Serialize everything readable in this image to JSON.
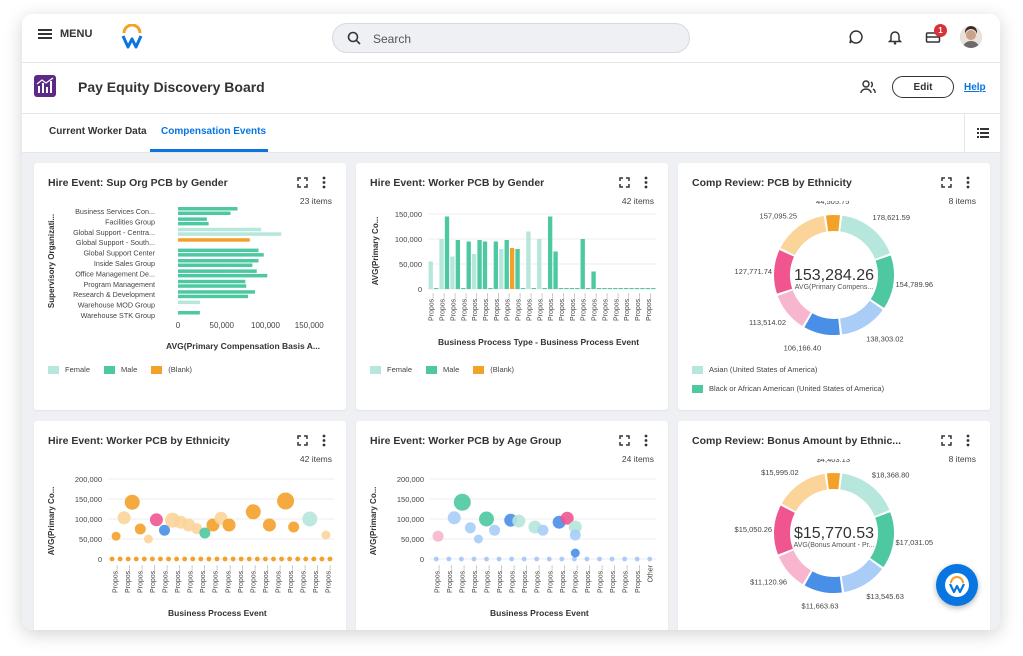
{
  "topbar": {
    "menu_label": "MENU",
    "search_placeholder": "Search",
    "notification_badge": "1"
  },
  "header": {
    "title": "Pay Equity Discovery Board",
    "edit_label": "Edit",
    "help_label": "Help"
  },
  "tabs": [
    {
      "label": "Current Worker Data",
      "active": false
    },
    {
      "label": "Compensation Events",
      "active": true
    }
  ],
  "colors": {
    "female": "#b6e6dc",
    "male": "#4dc8a1",
    "blank": "#f4a12a",
    "accent": "#0875e1"
  },
  "cards": [
    {
      "title": "Hire Event: Sup Org PCB by Gender",
      "count": "23 items",
      "legend": [
        "Female",
        "Male",
        "(Blank)"
      ]
    },
    {
      "title": "Hire Event: Worker PCB by Gender",
      "count": "42 items",
      "legend": [
        "Female",
        "Male",
        "(Blank)"
      ]
    },
    {
      "title": "Comp Review: PCB by Ethnicity",
      "count": "8 items",
      "center_value": "153,284.26",
      "center_label": "AVG(Primary Compens...",
      "legend": [
        "Asian (United States of America)",
        "Black or African American (United States of America)"
      ]
    },
    {
      "title": "Hire Event: Worker PCB by Ethnicity",
      "count": "42 items"
    },
    {
      "title": "Hire Event: Worker PCB by Age Group",
      "count": "24 items"
    },
    {
      "title": "Comp Review: Bonus Amount by Ethnic...",
      "count": "8 items",
      "center_value": "$15,770.53",
      "center_label": "AVG(Bonus Amount - Pr..."
    }
  ],
  "chart_data": [
    {
      "type": "bar",
      "orientation": "horizontal",
      "title": "Hire Event: Sup Org PCB by Gender",
      "xlabel": "AVG(Primary Compensation Basis A...",
      "ylabel": "Supervisory Organizati...",
      "categories": [
        "Business Services Con...",
        "Facilities Group",
        "Global Support - Centra...",
        "Global Support - South...",
        "Global Support Center",
        "Inside Sales Group",
        "Office Management De...",
        "Program Management",
        "Research & Development",
        "Warehouse MOD Group",
        "Warehouse STK Group"
      ],
      "xticks": [
        "0",
        "50,000",
        "100,000",
        "150,000"
      ],
      "xlim": [
        0,
        160000
      ],
      "series": [
        {
          "name": "Female",
          "values": [
            0,
            0,
            95000,
            0,
            0,
            0,
            55000,
            0,
            0,
            25000,
            0
          ]
        },
        {
          "name": "Male",
          "values": [
            68000,
            33000,
            0,
            0,
            92000,
            92000,
            90000,
            77000,
            88000,
            0,
            25000
          ]
        },
        {
          "name": "(Blank)",
          "values": [
            0,
            0,
            0,
            82000,
            0,
            0,
            0,
            0,
            0,
            0,
            0
          ]
        }
      ],
      "extra_bars": [
        {
          "cat": 0,
          "series": "Male",
          "value": 60000
        },
        {
          "cat": 1,
          "series": "Male",
          "value": 35000
        },
        {
          "cat": 2,
          "series": "Female",
          "value": 118000
        },
        {
          "cat": 4,
          "series": "Male",
          "value": 98000
        },
        {
          "cat": 5,
          "series": "Male",
          "value": 85000
        },
        {
          "cat": 6,
          "series": "Male",
          "value": 102000
        },
        {
          "cat": 7,
          "series": "Male",
          "value": 78000
        },
        {
          "cat": 8,
          "series": "Male",
          "value": 80000
        }
      ]
    },
    {
      "type": "bar",
      "title": "Hire Event: Worker PCB by Gender",
      "xlabel": "Business Process Type - Business Process Event",
      "ylabel": "AVG(Primary Co...",
      "yticks": [
        "0",
        "50,000",
        "100,000",
        "150,000"
      ],
      "ylim": [
        0,
        160000
      ],
      "tick_label": "Propos...",
      "values": [
        55000,
        0,
        100000,
        145000,
        65000,
        98000,
        0,
        95000,
        70000,
        98000,
        95000,
        0,
        95000,
        80000,
        98000,
        82000,
        80000,
        0,
        115000,
        0,
        100000,
        0,
        145000,
        75000,
        0,
        0,
        0,
        0,
        100000,
        0,
        35000,
        0,
        0,
        0,
        0,
        0,
        0,
        0,
        0,
        0,
        0,
        0
      ],
      "colors_by_index": {
        "15": "blank"
      },
      "female_indices": [
        0,
        2,
        4,
        8,
        13,
        15,
        17,
        18,
        20,
        24
      ]
    },
    {
      "type": "pie",
      "variant": "donut",
      "title": "Comp Review: PCB by Ethnicity",
      "center_value": "153,284.26",
      "slices": [
        {
          "label": "178,621.59",
          "value": 178621.59,
          "color": "#b6e6dc"
        },
        {
          "label": "154,789.96",
          "value": 154789.96,
          "color": "#4dc8a1"
        },
        {
          "label": "138,303.02",
          "value": 138303.02,
          "color": "#a9cdf7"
        },
        {
          "label": "106,166.40",
          "value": 106166.4,
          "color": "#4a8fe7"
        },
        {
          "label": "113,514.02",
          "value": 113514.02,
          "color": "#f7b6cd"
        },
        {
          "label": "127,771.74",
          "value": 127771.74,
          "color": "#f05590"
        },
        {
          "label": "157,095.25",
          "value": 157095.25,
          "color": "#fbd49a"
        },
        {
          "label": "44,505.75",
          "value": 44505.75,
          "color": "#f4a12a"
        }
      ]
    },
    {
      "type": "scatter",
      "title": "Hire Event: Worker PCB by Ethnicity",
      "xlabel": "Business Process Event",
      "ylabel": "AVG(Primary Co...",
      "yticks": [
        "0",
        "50,000",
        "100,000",
        "150,000",
        "200,000"
      ],
      "ylim": [
        0,
        200000
      ],
      "tick_label": "Propos...",
      "points": [
        {
          "x": 0,
          "y": 57000,
          "r": 3,
          "c": "#f4a12a"
        },
        {
          "x": 1,
          "y": 103000,
          "r": 5,
          "c": "#fbd49a"
        },
        {
          "x": 2,
          "y": 142000,
          "r": 6,
          "c": "#f4a12a"
        },
        {
          "x": 3,
          "y": 75000,
          "r": 4,
          "c": "#f4a12a"
        },
        {
          "x": 4,
          "y": 50000,
          "r": 3,
          "c": "#fbd49a"
        },
        {
          "x": 5,
          "y": 98000,
          "r": 5,
          "c": "#f05590"
        },
        {
          "x": 6,
          "y": 72000,
          "r": 4,
          "c": "#4a8fe7"
        },
        {
          "x": 7,
          "y": 97000,
          "r": 6,
          "c": "#fbd49a"
        },
        {
          "x": 8,
          "y": 92000,
          "r": 5,
          "c": "#fbd49a"
        },
        {
          "x": 9,
          "y": 85000,
          "r": 5,
          "c": "#fbd49a"
        },
        {
          "x": 10,
          "y": 76000,
          "r": 4,
          "c": "#fbd49a"
        },
        {
          "x": 11,
          "y": 65000,
          "r": 4,
          "c": "#4dc8a1"
        },
        {
          "x": 12,
          "y": 85000,
          "r": 5,
          "c": "#f4a12a"
        },
        {
          "x": 13,
          "y": 102000,
          "r": 5,
          "c": "#fbd49a"
        },
        {
          "x": 14,
          "y": 85000,
          "r": 5,
          "c": "#f4a12a"
        },
        {
          "x": 17,
          "y": 118000,
          "r": 6,
          "c": "#f4a12a"
        },
        {
          "x": 19,
          "y": 85000,
          "r": 5,
          "c": "#f4a12a"
        },
        {
          "x": 21,
          "y": 145000,
          "r": 7,
          "c": "#f4a12a"
        },
        {
          "x": 22,
          "y": 80000,
          "r": 4,
          "c": "#f4a12a"
        },
        {
          "x": 24,
          "y": 100000,
          "r": 6,
          "c": "#b6e6dc"
        },
        {
          "x": 26,
          "y": 60000,
          "r": 3,
          "c": "#fbd49a"
        }
      ],
      "baseline_color": "#f4a12a",
      "count": 28
    },
    {
      "type": "scatter",
      "title": "Hire Event: Worker PCB by Age Group",
      "xlabel": "Business Process Event",
      "ylabel": "AVG(Primary Co...",
      "yticks": [
        "0",
        "50,000",
        "100,000",
        "150,000",
        "200,000"
      ],
      "ylim": [
        0,
        200000
      ],
      "tick_label": "Propos...",
      "last_tick": "Other",
      "points": [
        {
          "x": 0,
          "y": 57000,
          "r": 4,
          "c": "#f7b6cd"
        },
        {
          "x": 2,
          "y": 103000,
          "r": 5,
          "c": "#a9cdf7"
        },
        {
          "x": 3,
          "y": 142000,
          "r": 7,
          "c": "#4dc8a1"
        },
        {
          "x": 4,
          "y": 78000,
          "r": 4,
          "c": "#a9cdf7"
        },
        {
          "x": 5,
          "y": 50000,
          "r": 3,
          "c": "#a9cdf7"
        },
        {
          "x": 6,
          "y": 100000,
          "r": 6,
          "c": "#4dc8a1"
        },
        {
          "x": 7,
          "y": 72000,
          "r": 4,
          "c": "#a9cdf7"
        },
        {
          "x": 9,
          "y": 97000,
          "r": 5,
          "c": "#4a8fe7"
        },
        {
          "x": 10,
          "y": 95000,
          "r": 5,
          "c": "#b6e6dc"
        },
        {
          "x": 12,
          "y": 80000,
          "r": 5,
          "c": "#b6e6dc"
        },
        {
          "x": 13,
          "y": 72000,
          "r": 4,
          "c": "#a9cdf7"
        },
        {
          "x": 15,
          "y": 92000,
          "r": 5,
          "c": "#4a8fe7"
        },
        {
          "x": 16,
          "y": 102000,
          "r": 5,
          "c": "#f05590"
        },
        {
          "x": 17,
          "y": 80000,
          "r": 5,
          "c": "#b6e6dc"
        },
        {
          "x": 17,
          "y": 60000,
          "r": 4,
          "c": "#a9cdf7"
        },
        {
          "x": 17,
          "y": 15000,
          "r": 3,
          "c": "#4a8fe7"
        }
      ],
      "baseline_color": "#a9cdf7",
      "count": 18
    },
    {
      "type": "pie",
      "variant": "donut",
      "title": "Comp Review: Bonus Amount by Ethnic...",
      "center_value": "$15,770.53",
      "slices": [
        {
          "label": "$18,368.80",
          "value": 18368.8,
          "color": "#b6e6dc"
        },
        {
          "label": "$17,031.05",
          "value": 17031.05,
          "color": "#4dc8a1"
        },
        {
          "label": "$13,545.63",
          "value": 13545.63,
          "color": "#a9cdf7"
        },
        {
          "label": "$11,663.63",
          "value": 11663.63,
          "color": "#4a8fe7"
        },
        {
          "label": "$11,120.96",
          "value": 11120.96,
          "color": "#f7b6cd"
        },
        {
          "label": "$15,050.26",
          "value": 15050.26,
          "color": "#f05590"
        },
        {
          "label": "$15,995.02",
          "value": 15995.02,
          "color": "#fbd49a"
        },
        {
          "label": "$4,403.13",
          "value": 4403.13,
          "color": "#f4a12a"
        }
      ]
    }
  ]
}
